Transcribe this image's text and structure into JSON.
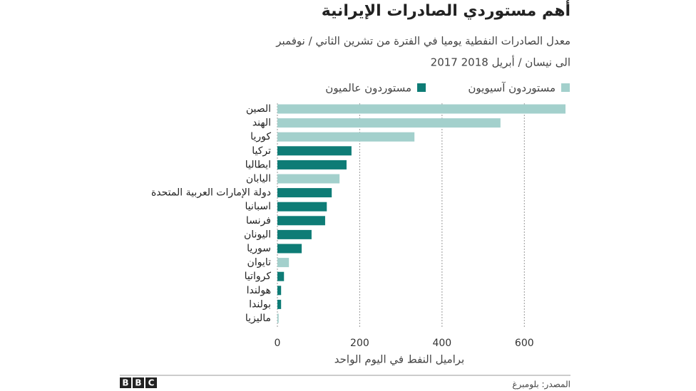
{
  "chart_data": {
    "type": "bar",
    "orientation": "horizontal",
    "title": "أهم مستوردي الصادرات الإيرانية",
    "subtitle": [
      "معدل الصادرات النفطية يوميا في الفترة من تشرين الثاني / نوفمبر",
      "2017 الى نيسان / أبريل 2018"
    ],
    "categories": [
      "الصين",
      "الهند",
      "كوريا",
      "تركيا",
      "ايطاليا",
      "اليابان",
      "دولة الإمارات العربية المتحدة",
      "اسبانيا",
      "فرنسا",
      "اليونان",
      "سوريا",
      "تايوان",
      "كرواتيا",
      "هولندا",
      "بولندا",
      "ماليزيا"
    ],
    "series": [
      {
        "name": "مستوردون آسيويون",
        "color": "#a3d0cc",
        "values": [
          700,
          542,
          333,
          null,
          null,
          151,
          null,
          null,
          null,
          null,
          null,
          28,
          null,
          null,
          null,
          3
        ]
      },
      {
        "name": "مستوردون عالميون",
        "color": "#0e7c76",
        "values": [
          null,
          null,
          null,
          180,
          168,
          null,
          132,
          120,
          116,
          83,
          59,
          null,
          16,
          9,
          9,
          null
        ]
      }
    ],
    "xlim": [
      0,
      700
    ],
    "xticks": [
      0,
      200,
      400,
      600
    ],
    "grid": true,
    "xlabel": "براميل النفط في اليوم الواحد",
    "source": "المصدر: بلومبرغ",
    "logo": [
      "B",
      "B",
      "C"
    ]
  }
}
